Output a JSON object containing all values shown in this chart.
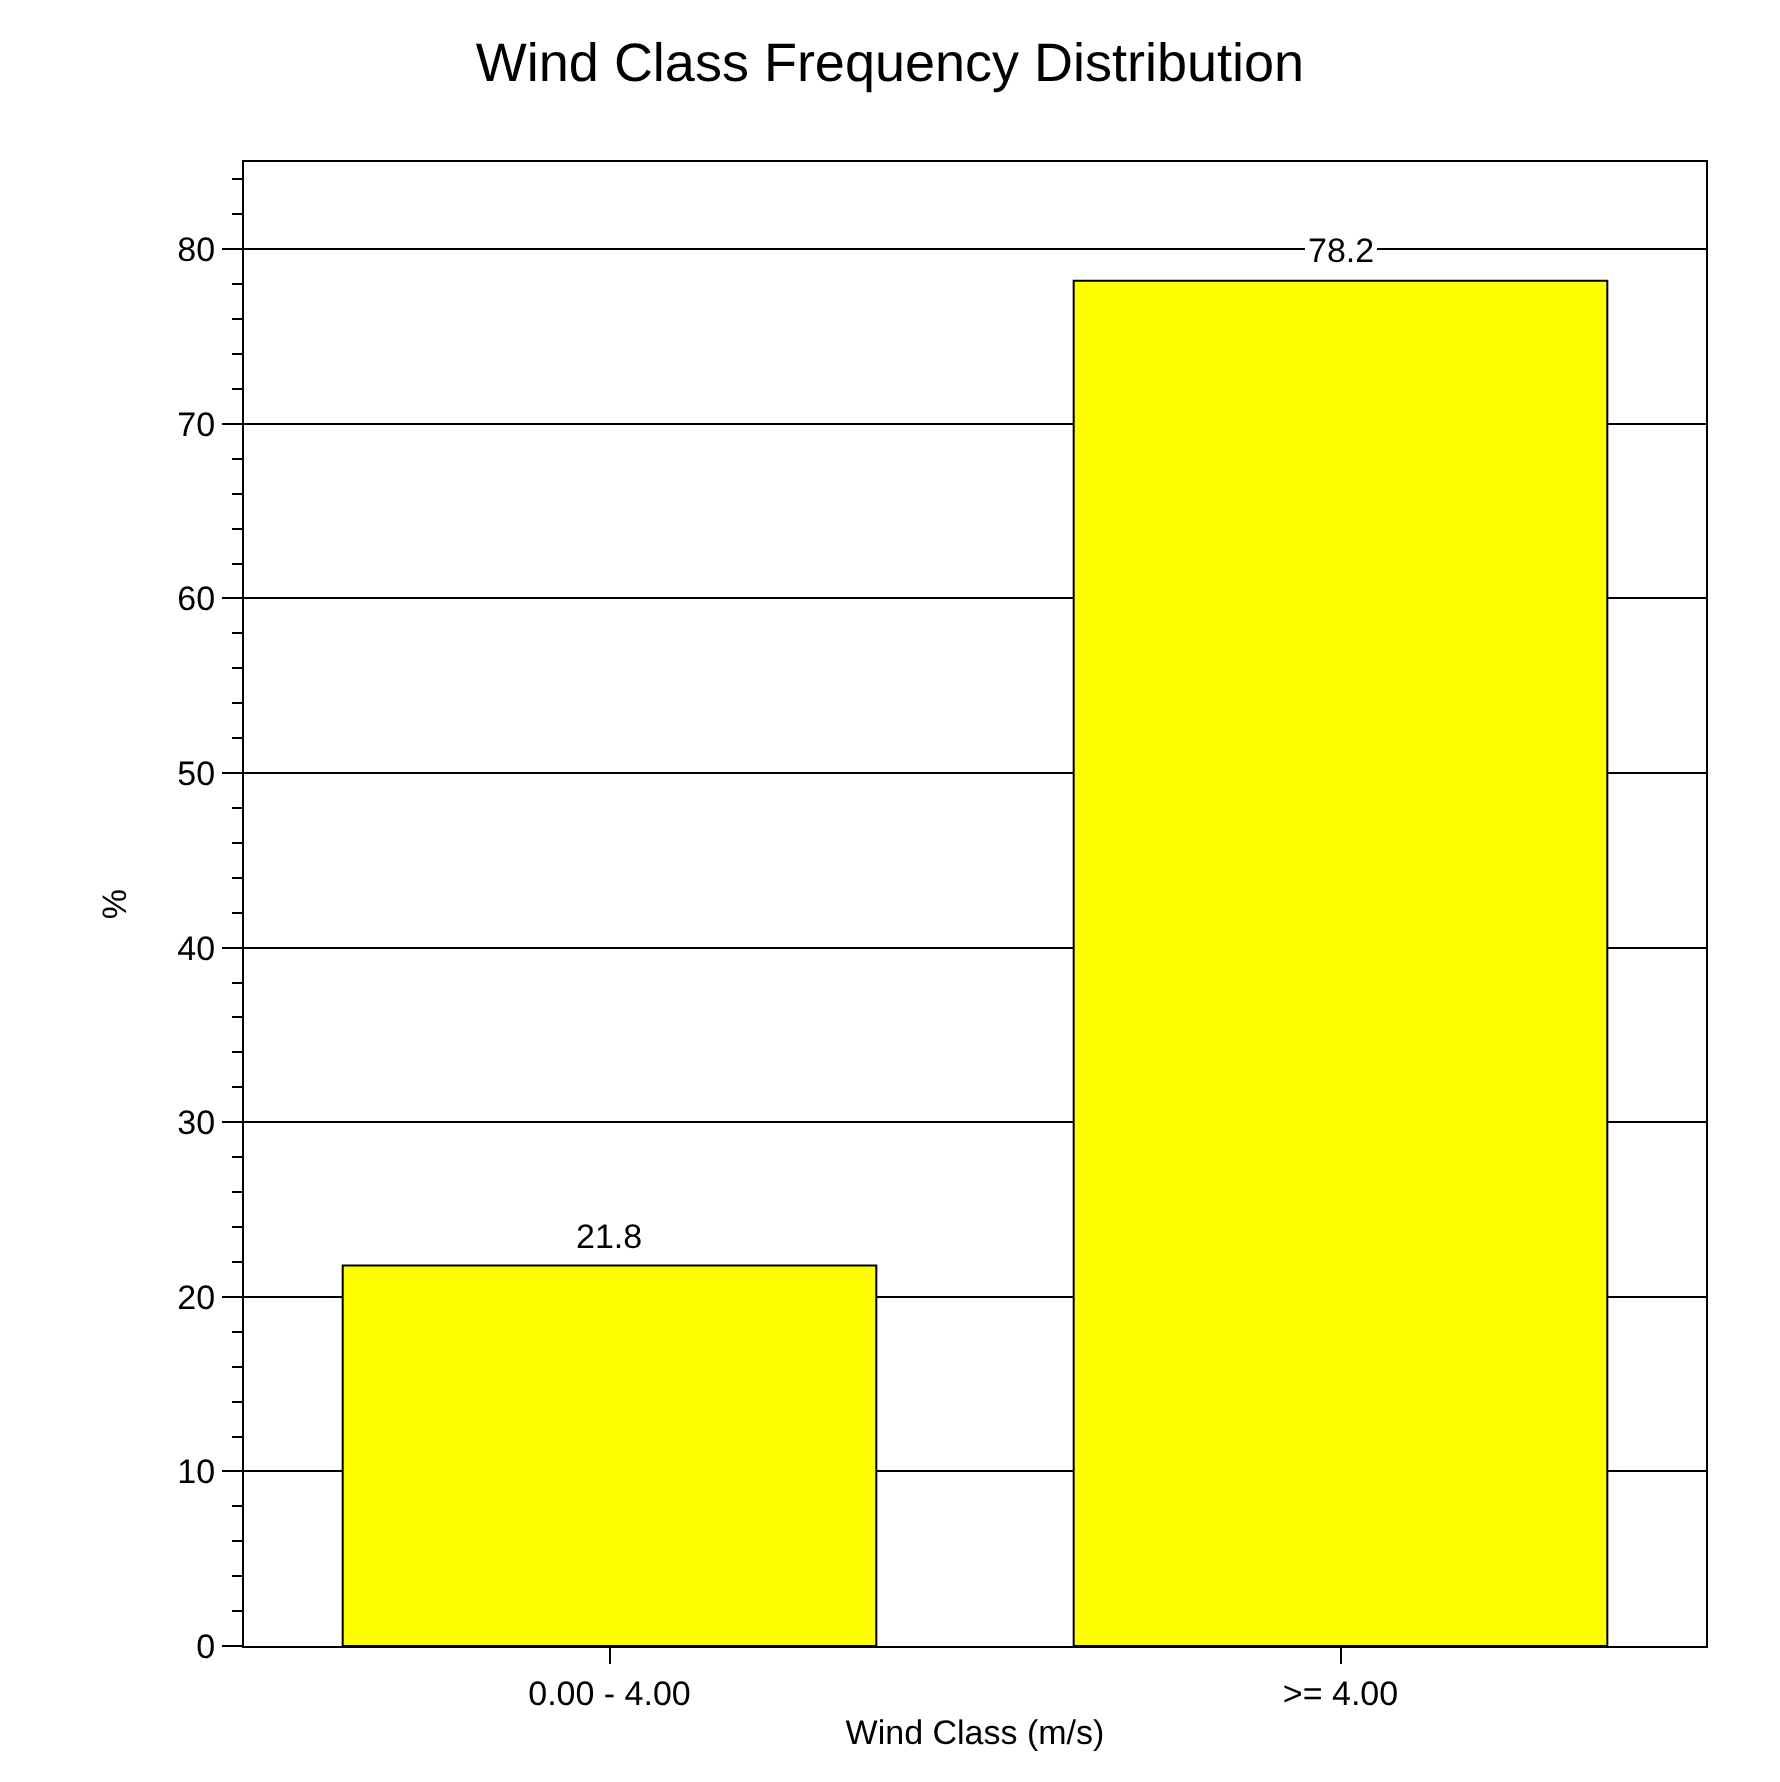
{
  "chart_data": {
    "type": "bar",
    "title": "Wind Class Frequency Distribution",
    "xlabel": "Wind Class (m/s)",
    "ylabel": "%",
    "categories": [
      "0.00 - 4.00",
      ">= 4.00"
    ],
    "values": [
      21.8,
      78.2
    ],
    "color": "#ffff00",
    "data_labels": true,
    "ylim": [
      0,
      85
    ],
    "yticks": [
      0,
      {
        "value": 2,
        "label": null
      },
      {
        "value": 4,
        "label": null
      },
      {
        "value": 6,
        "label": null
      },
      {
        "value": 8,
        "label": null
      },
      10,
      {
        "value": 12,
        "label": null
      },
      {
        "value": 14,
        "label": null
      },
      {
        "value": 16,
        "label": null
      },
      {
        "value": 18,
        "label": null
      },
      20,
      {
        "value": 22,
        "label": null
      },
      {
        "value": 24,
        "label": null
      },
      {
        "value": 26,
        "label": null
      },
      {
        "value": 28,
        "label": null
      },
      30,
      {
        "value": 32,
        "label": null
      },
      {
        "value": 34,
        "label": null
      },
      {
        "value": 36,
        "label": null
      },
      {
        "value": 38,
        "label": null
      },
      40,
      {
        "value": 42,
        "label": null
      },
      {
        "value": 44,
        "label": null
      },
      {
        "value": 46,
        "label": null
      },
      {
        "value": 48,
        "label": null
      },
      50,
      {
        "value": 52,
        "label": null
      },
      {
        "value": 54,
        "label": null
      },
      {
        "value": 56,
        "label": null
      },
      {
        "value": 58,
        "label": null
      },
      60,
      {
        "value": 62,
        "label": null
      },
      {
        "value": 64,
        "label": null
      },
      {
        "value": 66,
        "label": null
      },
      {
        "value": 68,
        "label": null
      },
      70,
      {
        "value": 72,
        "label": null
      },
      {
        "value": 74,
        "label": null
      },
      {
        "value": 76,
        "label": null
      },
      {
        "value": 78,
        "label": null
      },
      80,
      {
        "value": 82,
        "label": null
      },
      {
        "value": 84,
        "label": null
      }
    ],
    "grid": "y"
  }
}
